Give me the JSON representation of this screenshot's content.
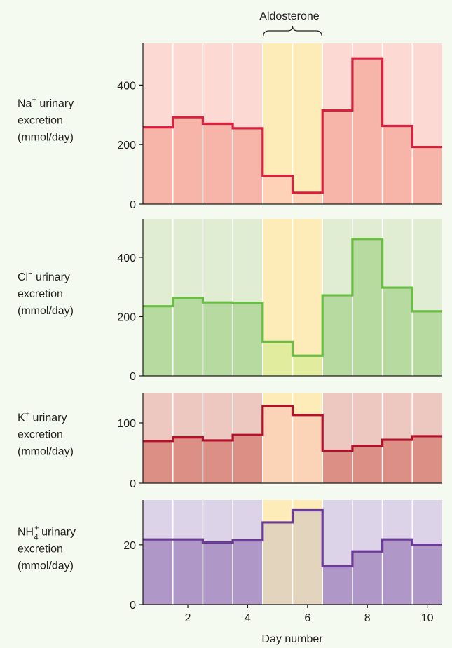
{
  "annotation": "Aldosterone",
  "xlabel": "Day number",
  "x_ticks": [
    2,
    4,
    6,
    8,
    10
  ],
  "aldosterone_days": [
    5,
    6
  ],
  "colors": {
    "aldosterone_band": "#fdecb8",
    "frame_line": "#1a1a1a"
  },
  "chart_data": [
    {
      "type": "bar",
      "id": "na",
      "ion": "Na",
      "sup": "+",
      "sub": "",
      "label_line1_suffix": " urinary",
      "label_line2": "excretion",
      "label_line3": "(mmol/day)",
      "days": [
        1,
        2,
        3,
        4,
        5,
        6,
        7,
        8,
        9,
        10
      ],
      "values": [
        258,
        292,
        270,
        255,
        95,
        38,
        315,
        490,
        263,
        192
      ],
      "y_ticks": [
        0,
        200,
        400
      ],
      "ylim": [
        0,
        540
      ],
      "colors": {
        "bg": "#fcdad3",
        "fill": "#f7b4a8",
        "line": "#d9203f",
        "band_fill": "#fdd2b6"
      }
    },
    {
      "type": "bar",
      "id": "cl",
      "ion": "Cl",
      "sup": "−",
      "sub": "",
      "label_line1_suffix": " urinary",
      "label_line2": "excretion",
      "label_line3": "(mmol/day)",
      "days": [
        1,
        2,
        3,
        4,
        5,
        6,
        7,
        8,
        9,
        10
      ],
      "values": [
        235,
        262,
        248,
        247,
        115,
        68,
        272,
        462,
        298,
        218
      ],
      "y_ticks": [
        0,
        200,
        400
      ],
      "ylim": [
        0,
        530
      ],
      "colors": {
        "bg": "#e0edd3",
        "fill": "#b7daa0",
        "line": "#6abd45",
        "band_fill": "#e2ec9e"
      }
    },
    {
      "type": "bar",
      "id": "k",
      "ion": "K",
      "sup": "+",
      "sub": "",
      "label_line1_suffix": " urinary",
      "label_line2": "excretion",
      "label_line3": "(mmol/day)",
      "days": [
        1,
        2,
        3,
        4,
        5,
        6,
        7,
        8,
        9,
        10
      ],
      "values": [
        70,
        76,
        71,
        80,
        128,
        113,
        54,
        62,
        72,
        78
      ],
      "y_ticks": [
        0,
        100
      ],
      "ylim": [
        0,
        150
      ],
      "colors": {
        "bg": "#ecc8c0",
        "fill": "#db8f85",
        "line": "#b0122b",
        "band_fill": "#fbd3b6"
      }
    },
    {
      "type": "bar",
      "id": "nh4",
      "ion": "NH",
      "sup": "+",
      "sub": "4",
      "label_line1_suffix": " urinary",
      "label_line2": "excretion",
      "label_line3": "(mmol/day)",
      "days": [
        1,
        2,
        3,
        4,
        5,
        6,
        7,
        8,
        9,
        10
      ],
      "values": [
        21.8,
        21.8,
        20.8,
        21.5,
        27.5,
        31.6,
        12.8,
        17.8,
        21.8,
        20.0
      ],
      "y_ticks": [
        0,
        20
      ],
      "ylim": [
        0,
        35
      ],
      "colors": {
        "bg": "#dcd3e8",
        "fill": "#af98c8",
        "line": "#6c3a98",
        "band_fill": "#e2d4bd"
      }
    }
  ]
}
